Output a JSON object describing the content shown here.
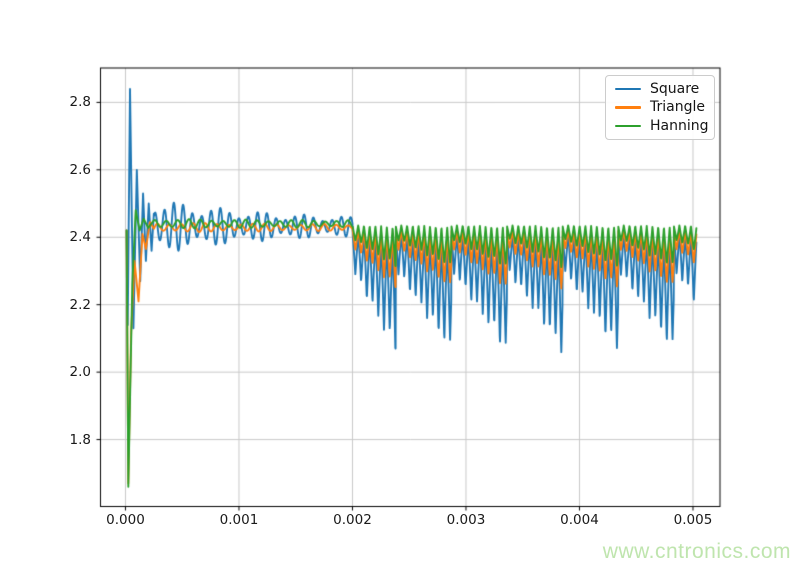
{
  "figure": {
    "background": "#ffffff"
  },
  "watermark": {
    "text": "www.cntronics.com",
    "color": "#bfe5ae"
  },
  "chart_data": {
    "type": "line",
    "title": "",
    "xlabel": "",
    "ylabel": "",
    "grid": true,
    "grid_color": "#c8c8c8",
    "spine_color": "#000000",
    "xlim": [
      -0.00022,
      0.005238
    ],
    "ylim": [
      1.6015,
      2.902
    ],
    "x_ticks": [
      0.0,
      0.001,
      0.002,
      0.003,
      0.004,
      0.005
    ],
    "x_tick_labels": [
      "0.000",
      "0.001",
      "0.002",
      "0.003",
      "0.004",
      "0.005"
    ],
    "y_ticks": [
      1.8,
      2.0,
      2.2,
      2.4,
      2.6,
      2.8
    ],
    "y_tick_labels": [
      "1.8",
      "2.0",
      "2.2",
      "2.4",
      "2.6",
      "2.8"
    ],
    "legend": {
      "position": "upper right",
      "entries": [
        "Square",
        "Triangle",
        "Hanning"
      ]
    },
    "pattern": {
      "flat_until": 0.002,
      "first_group_len": 0.00038,
      "group_period": 0.00049,
      "dip_period": 5.05e-05,
      "depth_ramp_start": 0.35,
      "depth_wobble": 0.07,
      "depth_wobble_period": 0.000131,
      "t_end": 0.00503,
      "sample_step": 2.5e-06
    },
    "series": [
      {
        "name": "Square",
        "color": "#1f77b4",
        "peak_value": 2.84,
        "initial_min": 2.13,
        "settled_value": 2.43,
        "post_0002_dip_min": 2.1,
        "transient_anchors": [
          [
            1e-05,
            2.42
          ],
          [
            2e-05,
            2.14
          ],
          [
            4e-05,
            2.84
          ],
          [
            7e-05,
            2.13
          ],
          [
            0.0001,
            2.6
          ],
          [
            0.00013,
            2.27
          ],
          [
            0.000155,
            2.53
          ],
          [
            0.00018,
            2.33
          ],
          [
            0.000205,
            2.5
          ],
          [
            0.00023,
            2.36
          ],
          [
            0.00025,
            2.47
          ]
        ],
        "steady": {
          "base": 2.432,
          "amp0": 0.05,
          "amp_tau": 0.001,
          "amp_floor": 0.013,
          "ripple_period": 8.2e-05,
          "phase": 0.65,
          "mod_depth": 0.35,
          "mod_period": 0.00037
        },
        "groups": {
          "peak0": 2.412,
          "peak_slope": 0.042,
          "max_depth": 0.3,
          "sharp": 1.15
        }
      },
      {
        "name": "Triangle",
        "color": "#ff7f0e",
        "initial_min": 1.67,
        "settled_value": 2.43,
        "post_0002_dip_min": 2.28,
        "transient_anchors": [
          [
            1e-05,
            2.42
          ],
          [
            2.5e-05,
            1.67
          ],
          [
            5e-05,
            2.12
          ],
          [
            8e-05,
            2.33
          ],
          [
            0.000115,
            2.21
          ],
          [
            0.00015,
            2.41
          ],
          [
            0.00018,
            2.365
          ],
          [
            0.000215,
            2.445
          ],
          [
            0.00025,
            2.425
          ]
        ],
        "steady": {
          "base": 2.429,
          "amp0": 0.007,
          "amp_tau": 0.002,
          "amp_floor": 0.005,
          "ripple_period": 0.000105,
          "phase": -0.34,
          "mod_depth": 0.25,
          "mod_period": 0.00053
        },
        "groups": {
          "peak0": 2.424,
          "peak_slope": 0.02,
          "max_depth": 0.15,
          "sharp": 1.0
        }
      },
      {
        "name": "Hanning",
        "color": "#2ca02c",
        "initial_min": 1.66,
        "settled_value": 2.44,
        "post_0002_dip_min": 2.31,
        "transient_anchors": [
          [
            1e-05,
            2.42
          ],
          [
            2.5e-05,
            1.66
          ],
          [
            6e-05,
            2.26
          ],
          [
            9e-05,
            2.48
          ],
          [
            0.000125,
            2.42
          ],
          [
            0.00016,
            2.455
          ],
          [
            0.0002,
            2.428
          ],
          [
            0.00025,
            2.45
          ]
        ],
        "steady": {
          "base": 2.44,
          "amp0": 0.006,
          "amp_tau": 0.002,
          "amp_floor": 0.006,
          "ripple_period": 0.0001,
          "phase": 0.98,
          "mod_depth": 0.25,
          "mod_period": 0.00047
        },
        "groups": {
          "peak0": 2.437,
          "peak_slope": 0.006,
          "max_depth": 0.115,
          "sharp": 0.9
        }
      }
    ]
  }
}
